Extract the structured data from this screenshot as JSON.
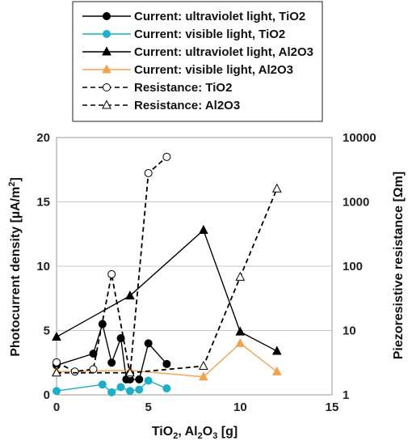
{
  "chart_data": {
    "type": "line",
    "x_label": [
      "TiO",
      "2",
      ", Al",
      "2",
      "O",
      "3",
      "   [g]"
    ],
    "y_left_label": [
      "Photocurrent density  [µA/m",
      "2",
      "]"
    ],
    "y_right_label": "Piezoresistive resistance  [Ωm]",
    "x_range": [
      0,
      15
    ],
    "x_ticks": [
      "0",
      "5",
      "10",
      "15"
    ],
    "y_left_range": [
      0,
      20
    ],
    "y_left_ticks": [
      "0",
      "5",
      "10",
      "15",
      "20"
    ],
    "y_right_scale": "log",
    "y_right_range": [
      1,
      10000
    ],
    "y_right_ticks": [
      "1",
      "10",
      "100",
      "1000",
      "10000"
    ],
    "grid": "horizontal",
    "legend_position": "top",
    "series": [
      {
        "name": "Current: ultraviolet light, TiO2",
        "axis": "left",
        "color": "#000000",
        "dashed": false,
        "marker": "circle",
        "points": [
          [
            0,
            2.3
          ],
          [
            2,
            3.2
          ],
          [
            2.5,
            5.5
          ],
          [
            3,
            2.5
          ],
          [
            3.5,
            4.4
          ],
          [
            3.8,
            1.2
          ],
          [
            4,
            1.2
          ],
          [
            4.5,
            1.2
          ],
          [
            5,
            4.0
          ],
          [
            6,
            2.4
          ]
        ]
      },
      {
        "name": "Current: visible light, TiO2",
        "axis": "left",
        "color": "#1ab0c7",
        "dashed": false,
        "marker": "circle",
        "points": [
          [
            0,
            0.3
          ],
          [
            2.5,
            0.8
          ],
          [
            3,
            0.2
          ],
          [
            3.5,
            0.6
          ],
          [
            4,
            0.3
          ],
          [
            4.5,
            0.4
          ],
          [
            5,
            1.1
          ],
          [
            6,
            0.5
          ]
        ]
      },
      {
        "name": "Current: ultraviolet light, Al2O3",
        "axis": "left",
        "color": "#000000",
        "dashed": false,
        "marker": "triangle",
        "points": [
          [
            0,
            4.5
          ],
          [
            4,
            7.7
          ],
          [
            8,
            12.8
          ],
          [
            10,
            4.9
          ],
          [
            12,
            3.4
          ]
        ]
      },
      {
        "name": "Current: visible light, Al2O3",
        "axis": "left",
        "color": "#f5a04b",
        "dashed": false,
        "marker": "triangle",
        "points": [
          [
            0,
            1.8
          ],
          [
            4,
            1.9
          ],
          [
            8,
            1.4
          ],
          [
            10,
            4.0
          ],
          [
            12,
            1.8
          ]
        ]
      },
      {
        "name": "Resistance: TiO2",
        "axis": "right",
        "color": "#000000",
        "dashed": true,
        "marker": "circle-open",
        "points": [
          [
            0,
            3.2
          ],
          [
            1,
            2.3
          ],
          [
            2,
            2.5
          ],
          [
            3,
            75
          ],
          [
            4,
            2.1
          ],
          [
            5,
            2800
          ],
          [
            6,
            5000
          ]
        ]
      },
      {
        "name": "Resistance: Al2O3",
        "axis": "right",
        "color": "#000000",
        "dashed": true,
        "marker": "triangle-open",
        "points": [
          [
            0,
            2.2
          ],
          [
            4,
            2.2
          ],
          [
            8,
            2.8
          ],
          [
            10,
            68
          ],
          [
            12,
            1600
          ]
        ]
      }
    ]
  }
}
